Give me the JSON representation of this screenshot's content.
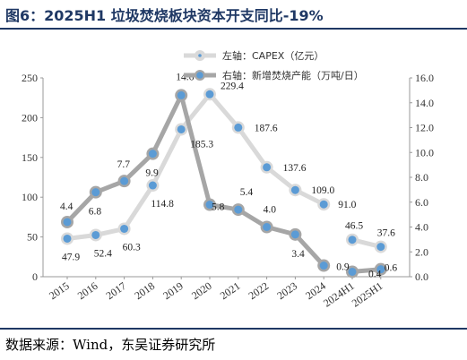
{
  "title": "图6：2025H1 垃圾焚烧板块资本开支同比-19%",
  "source": "数据来源：Wind，东吴证券研究所",
  "colors": {
    "title": "#1f3864",
    "capex_line": "#d9d9d9",
    "capacity_line": "#a6a6a6",
    "marker_fill": "#5b9bd5"
  },
  "chart_data": {
    "type": "line",
    "categories": [
      "2015",
      "2016",
      "2017",
      "2018",
      "2019",
      "2020",
      "2021",
      "2022",
      "2023",
      "2024",
      "2024H1",
      "2025H1"
    ],
    "left_axis": {
      "min": 0,
      "max": 250,
      "ticks": [
        "0",
        "50",
        "100",
        "150",
        "200",
        "250"
      ]
    },
    "right_axis": {
      "min": 0,
      "max": 16,
      "ticks": [
        "0.0",
        "2.0",
        "4.0",
        "6.0",
        "8.0",
        "10.0",
        "12.0",
        "14.0",
        "16.0"
      ]
    },
    "series": [
      {
        "name": "左轴：CAPEX（亿元）",
        "axis": "left",
        "values": [
          47.9,
          52.4,
          60.3,
          114.8,
          185.3,
          229.4,
          187.6,
          137.6,
          109.0,
          91.0,
          46.5,
          37.6
        ],
        "labels": [
          "47.9",
          "52.4",
          "60.3",
          "114.8",
          "185.3",
          "229.4",
          "187.6",
          "137.6",
          "109.0",
          "91.0",
          "46.5",
          "37.6"
        ],
        "segments": [
          [
            0,
            9
          ],
          [
            10,
            11
          ]
        ]
      },
      {
        "name": "右轴：新增焚烧产能（万吨/日）",
        "axis": "right",
        "values": [
          4.4,
          6.8,
          7.7,
          9.9,
          14.6,
          5.8,
          5.4,
          4.0,
          3.4,
          0.9,
          0.4,
          0.6
        ],
        "labels": [
          "4.4",
          "6.8",
          "7.7",
          "9.9",
          "14.6",
          "5.8",
          "5.4",
          "4.0",
          "3.4",
          "0.9",
          "0.4",
          "0.6"
        ],
        "segments": [
          [
            0,
            9
          ],
          [
            10,
            11
          ]
        ]
      }
    ],
    "legend_position": "top-right",
    "grid": false
  }
}
